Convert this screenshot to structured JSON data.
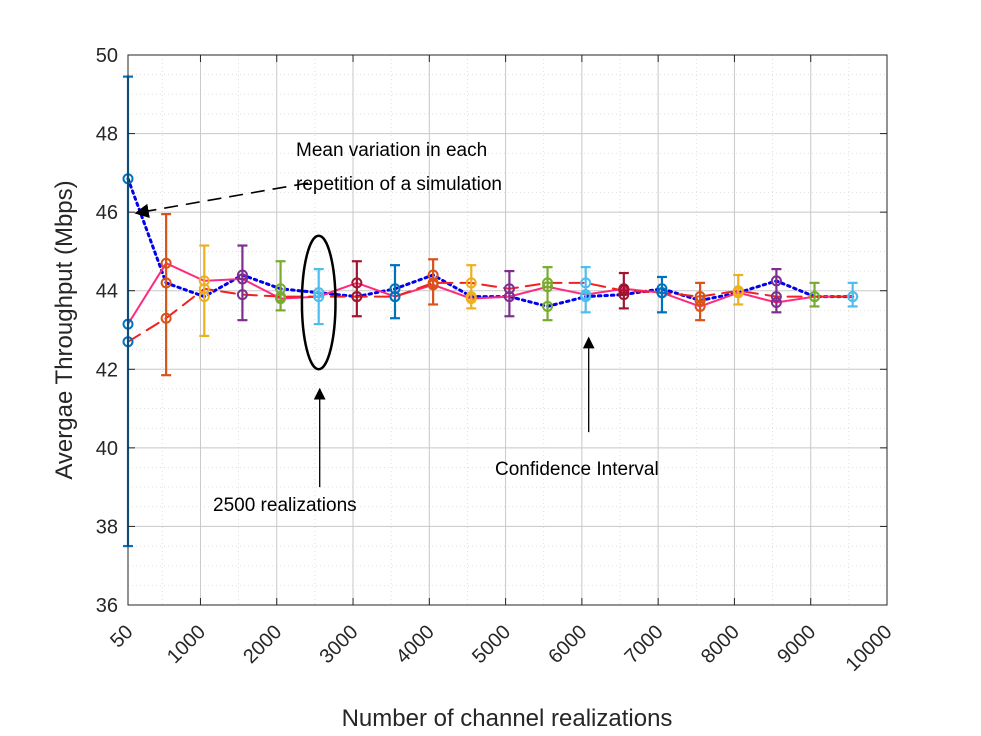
{
  "chart_data": {
    "type": "line",
    "xlabel": "Number of channel realizations",
    "ylabel": "Avergae Throughput (Mbps)",
    "xlim": [
      50,
      10000
    ],
    "ylim": [
      36,
      50
    ],
    "x_ticks": [
      50,
      1000,
      2000,
      3000,
      4000,
      5000,
      6000,
      7000,
      8000,
      9000,
      10000
    ],
    "x_tick_labels": [
      "50",
      "1000",
      "2000",
      "3000",
      "4000",
      "5000",
      "6000",
      "7000",
      "8000",
      "9000",
      "10000"
    ],
    "y_ticks": [
      36,
      38,
      40,
      42,
      44,
      46,
      48,
      50
    ],
    "y_tick_labels": [
      "36",
      "38",
      "40",
      "42",
      "44",
      "46",
      "48",
      "50"
    ],
    "grid": true,
    "minor_grid": true,
    "x": [
      50,
      550,
      1050,
      1550,
      2050,
      2550,
      3050,
      3550,
      4050,
      4550,
      5050,
      5550,
      6050,
      6550,
      7050,
      7550,
      8050,
      8550,
      9050,
      9550
    ],
    "series": [
      {
        "line_color": "#0000ee",
        "line_style": "dotted",
        "values": [
          46.85,
          44.2,
          43.85,
          44.4,
          44.05,
          43.95,
          43.85,
          44.05,
          44.4,
          43.85,
          43.85,
          43.6,
          43.85,
          43.9,
          44.05,
          43.75,
          43.95,
          44.25,
          43.85,
          43.85
        ]
      },
      {
        "line_color": "#ff2a7f",
        "line_style": "solid",
        "values": [
          43.15,
          44.7,
          44.25,
          44.3,
          43.8,
          43.85,
          44.2,
          43.85,
          44.15,
          43.8,
          43.85,
          44.1,
          43.9,
          44.05,
          43.95,
          43.6,
          43.95,
          43.7,
          43.85,
          43.85
        ]
      },
      {
        "line_color": "#ee2222",
        "line_style": "dashed",
        "values": [
          42.7,
          43.3,
          44.05,
          43.9,
          43.85,
          43.85,
          43.85,
          43.85,
          44.2,
          44.2,
          44.05,
          44.2,
          44.2,
          44.0,
          43.95,
          43.85,
          44.0,
          43.85,
          43.85,
          43.85
        ]
      }
    ],
    "marker_colors": [
      "#0072bd",
      "#d95319",
      "#edb120",
      "#7e2f8e",
      "#77ac30",
      "#4dbeee",
      "#a2142f"
    ],
    "error_bars": [
      {
        "x": 50,
        "low": 37.5,
        "high": 49.45
      },
      {
        "x": 550,
        "low": 41.85,
        "high": 45.95
      },
      {
        "x": 1050,
        "low": 42.85,
        "high": 45.15
      },
      {
        "x": 1550,
        "low": 43.25,
        "high": 45.15
      },
      {
        "x": 2050,
        "low": 43.5,
        "high": 44.75
      },
      {
        "x": 2550,
        "low": 43.15,
        "high": 44.55
      },
      {
        "x": 3050,
        "low": 43.35,
        "high": 44.75
      },
      {
        "x": 3550,
        "low": 43.3,
        "high": 44.65
      },
      {
        "x": 4050,
        "low": 43.65,
        "high": 44.8
      },
      {
        "x": 4550,
        "low": 43.55,
        "high": 44.65
      },
      {
        "x": 5050,
        "low": 43.35,
        "high": 44.5
      },
      {
        "x": 5550,
        "low": 43.25,
        "high": 44.6
      },
      {
        "x": 6050,
        "low": 43.45,
        "high": 44.6
      },
      {
        "x": 6550,
        "low": 43.55,
        "high": 44.45
      },
      {
        "x": 7050,
        "low": 43.45,
        "high": 44.35
      },
      {
        "x": 7550,
        "low": 43.25,
        "high": 44.2
      },
      {
        "x": 8050,
        "low": 43.65,
        "high": 44.4
      },
      {
        "x": 8550,
        "low": 43.45,
        "high": 44.55
      },
      {
        "x": 9050,
        "low": 43.6,
        "high": 44.2
      },
      {
        "x": 9550,
        "low": 43.6,
        "high": 44.2
      }
    ],
    "annotations": [
      {
        "id": "mean-variation",
        "lines": [
          "Mean variation in each",
          "repetition of a simulation"
        ],
        "arrow_style": "dashed",
        "text_at": {
          "x": 5900,
          "y": 45.95
        },
        "arrow_to": {
          "x": 100,
          "y": 46.0
        }
      },
      {
        "id": "confidence-interval",
        "lines": [
          "Confidence Interval"
        ],
        "arrow_style": "solid",
        "text_at": {
          "x": 6050,
          "y": 39.3
        },
        "arrow_from": {
          "x": 6050,
          "y": 40.4
        },
        "arrow_to": {
          "x": 6050,
          "y": 42.8
        }
      },
      {
        "id": "realizations-2500",
        "lines": [
          "2500 realizations"
        ],
        "arrow_style": "solid",
        "text_at": {
          "x": 2550,
          "y": 38.4
        },
        "arrow_from": {
          "x": 2550,
          "y": 39.0
        },
        "arrow_to": {
          "x": 2550,
          "y": 41.5
        }
      }
    ],
    "highlight_ellipse": {
      "center_x": 2550,
      "center_y": 43.7,
      "radius_x": 220,
      "radius_y": 1.7
    }
  }
}
